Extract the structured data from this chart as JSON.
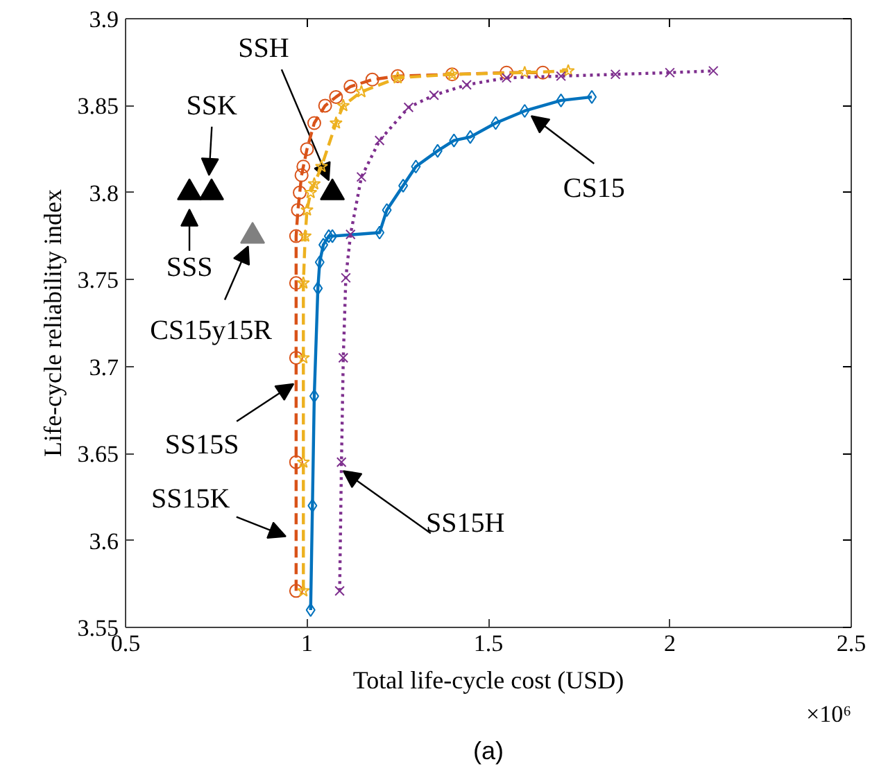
{
  "chart_data": {
    "type": "line",
    "xlabel": "Total life-cycle cost (USD)",
    "ylabel": "Life-cycle reliability index",
    "xlim": [
      0.5,
      2.5
    ],
    "xticks": [
      0.5,
      1,
      1.5,
      2,
      2.5
    ],
    "ylim": [
      3.55,
      3.9
    ],
    "yticks": [
      3.55,
      3.6,
      3.65,
      3.7,
      3.75,
      3.8,
      3.85,
      3.9
    ],
    "grid": false,
    "series": [
      {
        "color": "#d95319",
        "marker": "circle",
        "line_style": "dashed",
        "x": [
          0.97,
          0.97,
          0.97,
          0.97,
          0.97,
          0.975,
          0.98,
          0.985,
          0.99,
          1.0,
          1.02,
          1.05,
          1.08,
          1.12,
          1.18,
          1.25,
          1.4,
          1.55,
          1.65
        ],
        "values": [
          3.571,
          3.645,
          3.705,
          3.748,
          3.775,
          3.79,
          3.8,
          3.81,
          3.815,
          3.825,
          3.84,
          3.85,
          3.855,
          3.861,
          3.865,
          3.867,
          3.868,
          3.869,
          3.869
        ]
      },
      {
        "color": "#edb120",
        "marker": "star",
        "line_style": "dashed",
        "x": [
          0.99,
          0.99,
          0.99,
          0.99,
          0.995,
          1.0,
          1.01,
          1.02,
          1.04,
          1.08,
          1.1,
          1.15,
          1.25,
          1.4,
          1.6,
          1.72
        ],
        "values": [
          3.571,
          3.645,
          3.705,
          3.748,
          3.775,
          3.79,
          3.8,
          3.805,
          3.815,
          3.84,
          3.85,
          3.858,
          3.866,
          3.868,
          3.869,
          3.87
        ]
      },
      {
        "color": "#0072bd",
        "marker": "diamond",
        "line_style": "solid",
        "x": [
          1.01,
          1.015,
          1.02,
          1.03,
          1.035,
          1.045,
          1.06,
          1.07,
          1.2,
          1.22,
          1.265,
          1.3,
          1.36,
          1.405,
          1.45,
          1.52,
          1.6,
          1.7,
          1.785
        ],
        "values": [
          3.56,
          3.62,
          3.683,
          3.745,
          3.76,
          3.77,
          3.775,
          3.775,
          3.777,
          3.79,
          3.804,
          3.815,
          3.824,
          3.83,
          3.832,
          3.84,
          3.847,
          3.853,
          3.855
        ]
      },
      {
        "color": "#7e2f8e",
        "marker": "cross",
        "line_style": "dotted",
        "x": [
          1.09,
          1.095,
          1.1,
          1.107,
          1.12,
          1.15,
          1.2,
          1.28,
          1.35,
          1.44,
          1.55,
          1.7,
          1.85,
          2.0,
          2.12
        ],
        "values": [
          3.571,
          3.645,
          3.705,
          3.751,
          3.776,
          3.809,
          3.83,
          3.849,
          3.856,
          3.862,
          3.866,
          3.867,
          3.868,
          3.869,
          3.87
        ]
      },
      {
        "type": "scatter",
        "color": "#000000",
        "marker": "triangle",
        "x": [
          0.676,
          0.737,
          1.07
        ],
        "values": [
          3.8,
          3.8,
          3.8
        ]
      },
      {
        "type": "scatter",
        "color": "#808080",
        "marker": "triangle",
        "x": [
          0.85
        ],
        "values": [
          3.775
        ]
      }
    ],
    "annotations": [
      {
        "text": "SSK",
        "x": 0.73,
        "y": 3.81
      },
      {
        "text": "SSS",
        "x": 0.676,
        "y": 3.8
      },
      {
        "text": "SSH",
        "x": 1.06,
        "y": 3.807
      },
      {
        "text": "CS15y15R",
        "x": 0.85,
        "y": 3.775
      },
      {
        "text": "CS15",
        "x": 1.6,
        "y": 3.847
      },
      {
        "text": "SS15S",
        "x": 0.963,
        "y": 3.69
      },
      {
        "text": "SS15K",
        "x": 0.97,
        "y": 3.6
      },
      {
        "text": "SS15H",
        "x": 1.1,
        "y": 3.64
      },
      "×10⁶",
      "(a)"
    ]
  }
}
